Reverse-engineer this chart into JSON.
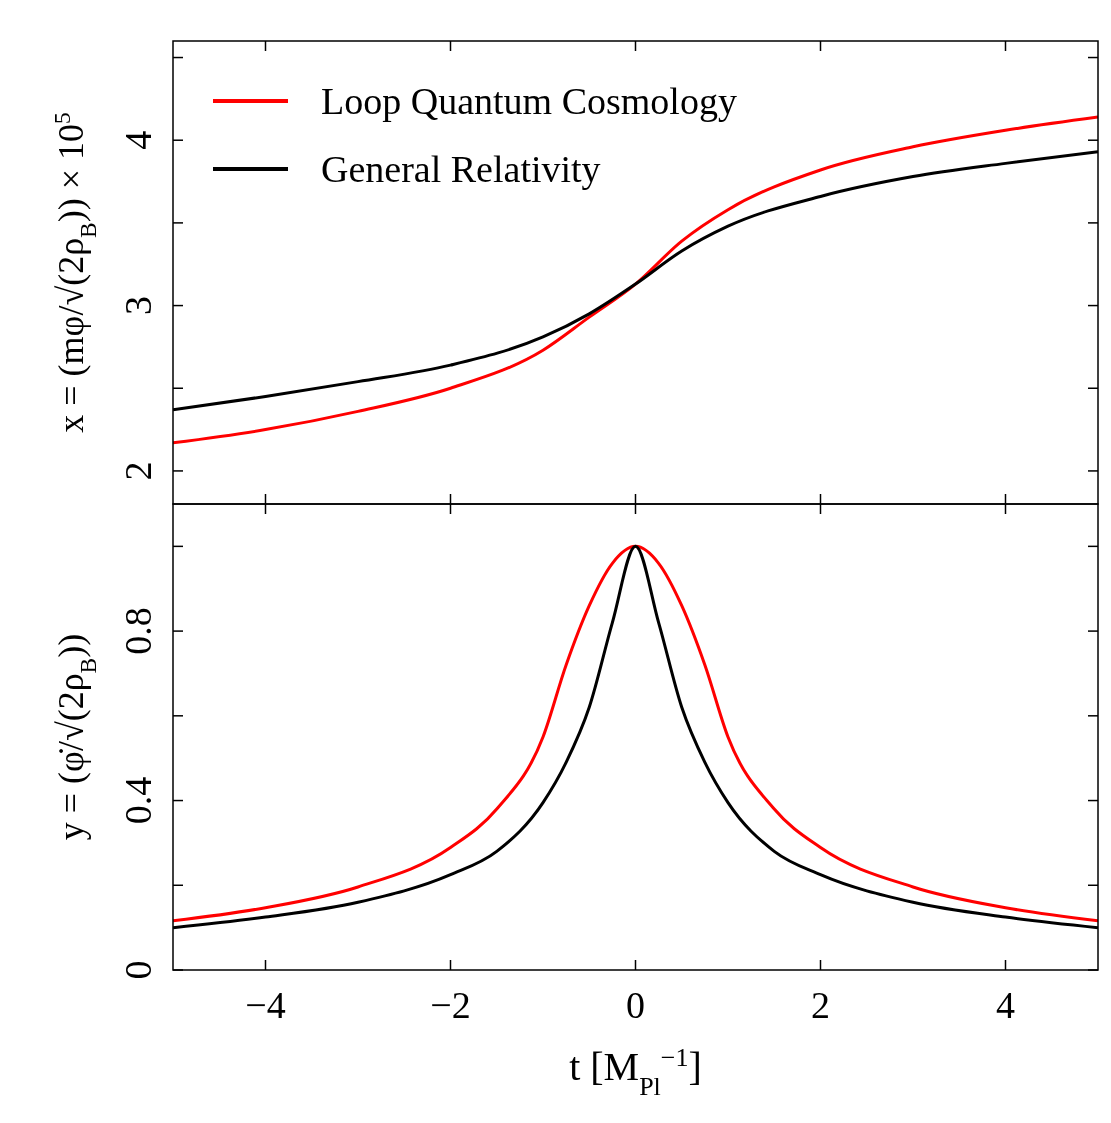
{
  "chart_data": [
    {
      "type": "line",
      "ylabel": "x = (mφ/√(2ρ$_{B}$)) × 10$^{5}$",
      "legend": "top left",
      "tick_labels": "y",
      "line_style": "solid",
      "xlim": [
        -5,
        5
      ],
      "xticks": [
        {
          "value": -4,
          "label": null
        },
        {
          "value": -2,
          "label": null
        },
        {
          "value": 0,
          "label": null
        },
        {
          "value": 2,
          "label": null
        },
        {
          "value": 4,
          "label": null
        }
      ],
      "ylim": [
        1.8,
        4.6
      ],
      "yticks": [
        2,
        {
          "value": 2.5,
          "label": null
        },
        3,
        {
          "value": 3.5,
          "label": null
        },
        4,
        {
          "value": 4.5,
          "label": null
        }
      ],
      "x": [
        -5,
        -4,
        -3,
        -2,
        -1,
        -0.5,
        0,
        0.5,
        1,
        2,
        3,
        4,
        5
      ],
      "series": [
        {
          "name": "Loop Quantum Cosmology",
          "color": "#ff0000",
          "values": [
            2.17,
            2.25,
            2.36,
            2.5,
            2.73,
            2.93,
            3.13,
            3.39,
            3.58,
            3.82,
            3.96,
            4.06,
            4.14
          ]
        },
        {
          "name": "General Relativity",
          "color": "#000000",
          "values": [
            2.37,
            2.45,
            2.54,
            2.64,
            2.81,
            2.95,
            3.13,
            3.33,
            3.48,
            3.66,
            3.78,
            3.86,
            3.93
          ]
        }
      ]
    },
    {
      "type": "line",
      "ylabel": "y = (φ̇/√(2ρ$_{B}$))",
      "xlabel": "t [M$_{Pl}$$^{−1}$]",
      "line_style": "solid",
      "xlim": [
        -5,
        5
      ],
      "xticks": [
        -4,
        -2,
        0,
        2,
        4
      ],
      "ylim": [
        0,
        1.1
      ],
      "yticks": [
        0,
        {
          "value": 0.2,
          "label": null
        },
        0.4,
        {
          "value": 0.6,
          "label": null
        },
        0.8,
        {
          "value": 1.0,
          "label": null
        }
      ],
      "x": [
        -5,
        -4,
        -3,
        -2,
        -1.5,
        -1,
        -0.75,
        -0.5,
        -0.25,
        0,
        0.25,
        0.5,
        0.75,
        1,
        1.5,
        2,
        3,
        4,
        5
      ],
      "series": [
        {
          "color": "#ff0000",
          "values": [
            0.116,
            0.147,
            0.196,
            0.289,
            0.38,
            0.55,
            0.72,
            0.86,
            0.96,
            1.0,
            0.96,
            0.86,
            0.72,
            0.55,
            0.38,
            0.289,
            0.196,
            0.147,
            0.116
          ]
        },
        {
          "color": "#000000",
          "values": [
            0.1,
            0.125,
            0.16,
            0.225,
            0.28,
            0.395,
            0.49,
            0.62,
            0.82,
            1.0,
            0.82,
            0.62,
            0.49,
            0.395,
            0.28,
            0.225,
            0.16,
            0.125,
            0.1
          ]
        }
      ]
    }
  ]
}
